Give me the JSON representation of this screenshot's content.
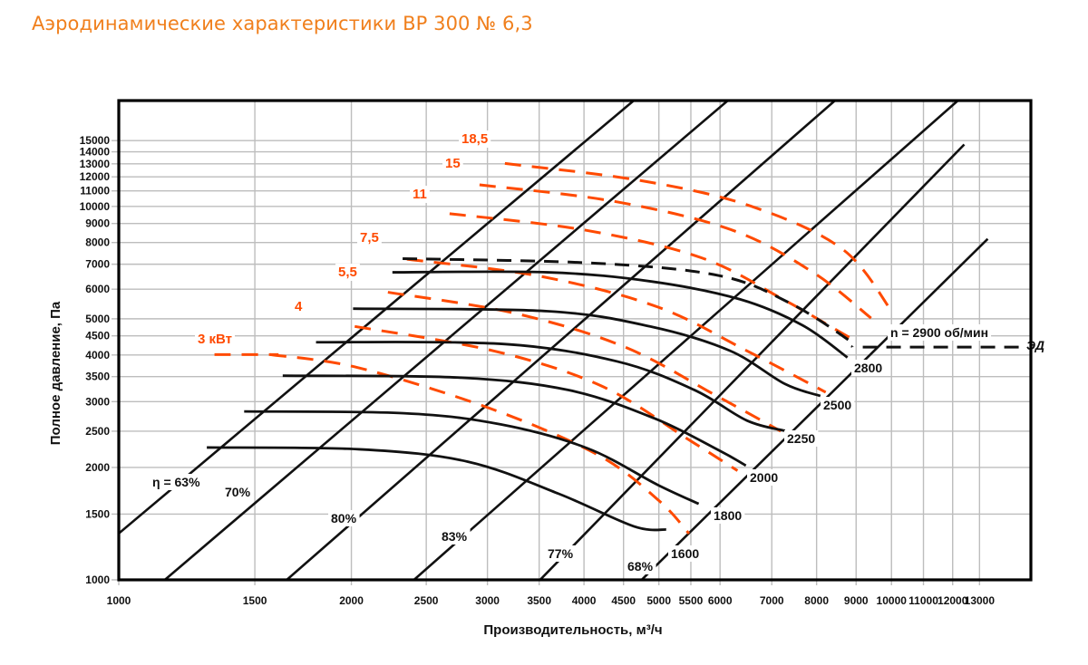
{
  "header": {
    "title": "Аэродинамические характеристики ВР 300 № 6,3"
  },
  "colors": {
    "title": "#f07f1c",
    "power": "#ff4a00",
    "curve": "#111111",
    "grid": "#bdbdbd"
  },
  "chart_data": {
    "type": "line",
    "title": "Аэродинамические характеристики ВР 300 № 6,3",
    "xlabel": "Производительность, м³/ч",
    "ylabel": "Полное давление, Па",
    "xscale": "log",
    "yscale": "log",
    "xlim": [
      1000,
      15150
    ],
    "ylim": [
      1000,
      19200
    ],
    "grid": true,
    "x_ticks": [
      1000,
      1500,
      2000,
      2500,
      3000,
      3500,
      4000,
      4500,
      5000,
      5500,
      6000,
      7000,
      8000,
      9000,
      10000,
      11000,
      12000,
      13000
    ],
    "x_tick_labels": [
      "1000",
      "1500",
      "2000",
      "2500",
      "3000",
      "3500",
      "4000",
      "4500",
      "5000",
      "5500",
      "6000",
      "7000",
      "8000",
      "9000",
      "10000",
      "11000",
      "12000",
      "13000"
    ],
    "y_ticks": [
      1000,
      1500,
      2000,
      2500,
      3000,
      3500,
      4000,
      4500,
      5000,
      6000,
      7000,
      8000,
      9000,
      10000,
      11000,
      12000,
      13000,
      14000,
      15000
    ],
    "y_tick_labels": [
      "1000",
      "1500",
      "2000",
      "2500",
      "3000",
      "3500",
      "4000",
      "4500",
      "5000",
      "6000",
      "7000",
      "8000",
      "9000",
      "10000",
      "11000",
      "12000",
      "13000",
      "14000",
      "15000"
    ],
    "speed_curves": [
      {
        "name": "1600",
        "label": "1600",
        "points": [
          [
            1300,
            2261
          ],
          [
            2050,
            2236
          ],
          [
            2830,
            2072
          ],
          [
            3710,
            1700
          ],
          [
            4640,
            1391
          ],
          [
            5110,
            1363
          ]
        ]
      },
      {
        "name": "1800",
        "label": "1800",
        "points": [
          [
            1453,
            2824
          ],
          [
            2340,
            2793
          ],
          [
            3120,
            2608
          ],
          [
            4040,
            2251
          ],
          [
            4980,
            1797
          ],
          [
            5630,
            1598
          ]
        ]
      },
      {
        "name": "2000",
        "label": "2000",
        "points": [
          [
            1630,
            3520
          ],
          [
            2750,
            3480
          ],
          [
            3820,
            3222
          ],
          [
            4940,
            2703
          ],
          [
            5990,
            2218
          ],
          [
            6480,
            2023
          ]
        ]
      },
      {
        "name": "2250",
        "label": "2250",
        "points": [
          [
            1800,
            4327
          ],
          [
            3130,
            4283
          ],
          [
            4410,
            3847
          ],
          [
            5550,
            3228
          ],
          [
            6500,
            2670
          ],
          [
            7280,
            2506
          ]
        ]
      },
      {
        "name": "2500",
        "label": "2500",
        "points": [
          [
            2010,
            5323
          ],
          [
            3590,
            5240
          ],
          [
            4890,
            4761
          ],
          [
            6180,
            4106
          ],
          [
            7280,
            3346
          ],
          [
            8090,
            3108
          ]
        ]
      },
      {
        "name": "2800",
        "label": "2800",
        "points": [
          [
            2260,
            6659
          ],
          [
            3590,
            6659
          ],
          [
            4890,
            6293
          ],
          [
            6370,
            5637
          ],
          [
            7670,
            4804
          ],
          [
            8770,
            3939
          ]
        ]
      }
    ],
    "operating_limit": {
      "name": "ЭД",
      "label": "ЭД",
      "speed_label": "n = 2900 об/мин",
      "points": [
        [
          2330,
          7246
        ],
        [
          4100,
          7050
        ],
        [
          5980,
          6527
        ],
        [
          7380,
          5514
        ],
        [
          8770,
          4409
        ],
        [
          8900,
          4200
        ],
        [
          9180,
          4200
        ],
        [
          14800,
          4200
        ]
      ]
    },
    "efficiency_lines": [
      {
        "name": "63%",
        "label": "η = 63%",
        "points": [
          [
            1000,
            1331
          ],
          [
            4640,
            19200
          ]
        ]
      },
      {
        "name": "70%",
        "label": "70%",
        "points": [
          [
            1147,
            1000
          ],
          [
            6140,
            19200
          ]
        ]
      },
      {
        "name": "80%",
        "label": "80%",
        "points": [
          [
            1650,
            1000
          ],
          [
            8450,
            19200
          ]
        ]
      },
      {
        "name": "83%",
        "label": "83%",
        "points": [
          [
            2410,
            1000
          ],
          [
            12190,
            19200
          ]
        ]
      },
      {
        "name": "77%",
        "label": "77%",
        "points": [
          [
            3510,
            1000
          ],
          [
            12420,
            14640
          ]
        ]
      },
      {
        "name": "68%",
        "label": "68%",
        "points": [
          [
            4750,
            1000
          ],
          [
            13320,
            8180
          ]
        ]
      }
    ],
    "power_lines": [
      {
        "name": "3 кВт",
        "label": "3 кВт",
        "points": [
          [
            1330,
            4010
          ],
          [
            1610,
            4010
          ]
        ]
      },
      {
        "name": "3 кВт-b",
        "label": "",
        "points": [
          [
            1570,
            4010
          ],
          [
            2040,
            3700
          ],
          [
            3020,
            2880
          ],
          [
            4170,
            2160
          ],
          [
            5000,
            1630
          ],
          [
            5470,
            1330
          ]
        ]
      },
      {
        "name": "4",
        "label": "4",
        "points": [
          [
            2020,
            4770
          ],
          [
            3060,
            4100
          ],
          [
            4220,
            3300
          ],
          [
            5470,
            2370
          ],
          [
            6320,
            1960
          ]
        ]
      },
      {
        "name": "5,5",
        "label": "5,5",
        "points": [
          [
            2230,
            5890
          ],
          [
            3260,
            5170
          ],
          [
            4520,
            4200
          ],
          [
            5920,
            3120
          ],
          [
            7190,
            2500
          ]
        ]
      },
      {
        "name": "7,5",
        "label": "7,5",
        "points": [
          [
            2360,
            7220
          ],
          [
            3510,
            6500
          ],
          [
            4980,
            5380
          ],
          [
            6520,
            4090
          ],
          [
            8220,
            3180
          ]
        ]
      },
      {
        "name": "11",
        "label": "11",
        "points": [
          [
            2680,
            9560
          ],
          [
            4010,
            8640
          ],
          [
            5680,
            7280
          ],
          [
            7270,
            5610
          ],
          [
            8750,
            4500
          ],
          [
            9020,
            4360
          ]
        ]
      },
      {
        "name": "15",
        "label": "15",
        "points": [
          [
            2930,
            11420
          ],
          [
            4380,
            10310
          ],
          [
            6230,
            8630
          ],
          [
            7930,
            6640
          ],
          [
            9410,
            5020
          ]
        ]
      },
      {
        "name": "18,5",
        "label": "18,5",
        "points": [
          [
            3160,
            13030
          ],
          [
            4740,
            11720
          ],
          [
            6580,
            10010
          ],
          [
            8650,
            7670
          ],
          [
            10030,
            5200
          ]
        ]
      }
    ]
  }
}
